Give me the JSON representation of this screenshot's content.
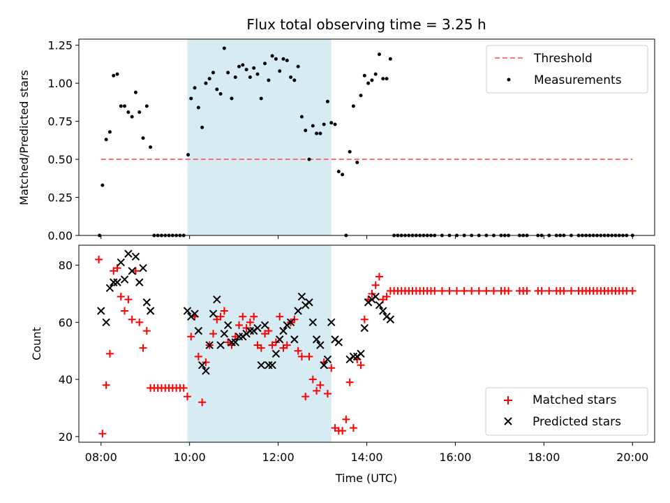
{
  "chart_data": [
    {
      "type": "scatter",
      "title": "Flux total observing time = 3.25 h",
      "xlabel": "",
      "ylabel": "Matched/Predicted stars",
      "xlim": [
        "07:30",
        "20:30"
      ],
      "ylim": [
        0,
        1.29
      ],
      "yticks": [
        "0.00",
        "0.25",
        "0.50",
        "0.75",
        "1.00",
        "1.25"
      ],
      "shaded_region": {
        "x": [
          "09:57",
          "13:12"
        ],
        "color": "#add8e6"
      },
      "legend": {
        "position": "top-right",
        "entries": [
          "Threshold",
          "Measurements"
        ]
      },
      "threshold": {
        "name": "Threshold",
        "x": [
          "08:00",
          "20:00"
        ],
        "y": 0.5,
        "color": "#ff6666",
        "style": "dashed"
      },
      "series": [
        {
          "name": "Measurements",
          "color": "#000000",
          "marker": "dot",
          "x": [
            "07:58",
            "08:02",
            "08:07",
            "08:12",
            "08:17",
            "08:22",
            "08:27",
            "08:32",
            "08:37",
            "08:42",
            "08:47",
            "08:52",
            "08:57",
            "09:02",
            "09:07",
            "09:12",
            "09:17",
            "09:22",
            "09:27",
            "09:32",
            "09:37",
            "09:42",
            "09:47",
            "09:52",
            "09:58",
            "10:02",
            "10:07",
            "10:12",
            "10:17",
            "10:22",
            "10:27",
            "10:32",
            "10:37",
            "10:42",
            "10:47",
            "10:52",
            "10:57",
            "11:02",
            "11:07",
            "11:12",
            "11:17",
            "11:22",
            "11:27",
            "11:32",
            "11:37",
            "11:42",
            "11:47",
            "11:52",
            "11:57",
            "12:02",
            "12:07",
            "12:12",
            "12:17",
            "12:22",
            "12:27",
            "12:32",
            "12:37",
            "12:42",
            "12:47",
            "12:52",
            "12:57",
            "13:02",
            "13:07",
            "13:12",
            "13:17",
            "13:22",
            "13:27",
            "13:32",
            "13:37",
            "13:42",
            "13:47",
            "13:52",
            "13:57",
            "14:02",
            "14:07",
            "14:12",
            "14:17",
            "14:22",
            "14:27",
            "14:32",
            "14:37",
            "14:42",
            "14:47",
            "14:52",
            "14:57",
            "15:02",
            "15:07",
            "15:12",
            "15:17",
            "15:22",
            "15:27",
            "15:32",
            "15:42",
            "15:52",
            "16:02",
            "16:12",
            "16:22",
            "16:32",
            "16:42",
            "16:52",
            "17:02",
            "17:07",
            "17:12",
            "17:27",
            "17:32",
            "17:37",
            "17:52",
            "17:57",
            "18:07",
            "18:17",
            "18:22",
            "18:27",
            "18:37",
            "18:47",
            "18:52",
            "18:57",
            "19:02",
            "19:07",
            "19:12",
            "19:17",
            "19:22",
            "19:27",
            "19:32",
            "19:37",
            "19:42",
            "19:47",
            "19:52",
            "20:00"
          ],
          "y": [
            0.0,
            0.33,
            0.63,
            0.68,
            1.05,
            1.06,
            0.85,
            0.85,
            0.81,
            0.78,
            0.94,
            0.81,
            0.64,
            0.85,
            0.58,
            0.0,
            0.0,
            0.0,
            0.0,
            0.0,
            0.0,
            0.0,
            0.0,
            0.0,
            0.53,
            0.9,
            0.97,
            0.84,
            0.71,
            1.0,
            1.03,
            1.07,
            0.96,
            0.93,
            1.23,
            1.07,
            0.9,
            1.04,
            1.11,
            1.12,
            1.09,
            1.04,
            1.1,
            1.06,
            0.9,
            1.13,
            1.02,
            1.18,
            1.16,
            1.08,
            1.16,
            1.15,
            1.04,
            1.02,
            1.11,
            0.78,
            0.69,
            0.5,
            0.72,
            0.67,
            0.67,
            0.73,
            0.88,
            0.74,
            0.73,
            0.42,
            0.4,
            0.0,
            0.55,
            0.85,
            0.48,
            0.92,
            1.05,
            1.0,
            1.02,
            1.06,
            1.19,
            1.03,
            1.03,
            1.16,
            0.0,
            0.0,
            0.0,
            0.0,
            0.0,
            0.0,
            0.0,
            0.0,
            0.0,
            0.0,
            0.0,
            0.0,
            0.0,
            0.0,
            0.0,
            0.0,
            0.0,
            0.0,
            0.0,
            0.0,
            0.0,
            0.0,
            0.0,
            0.0,
            0.0,
            0.0,
            0.0,
            0.0,
            0.0,
            0.0,
            0.0,
            0.0,
            0.0,
            0.0,
            0.0,
            0.0,
            0.0,
            0.0,
            0.0,
            0.0,
            0.0,
            0.0,
            0.0,
            0.0,
            0.0,
            0.0,
            0.0,
            0.0
          ]
        }
      ]
    },
    {
      "type": "scatter",
      "title": "",
      "xlabel": "Time (UTC)",
      "ylabel": "Count",
      "xlim": [
        "07:30",
        "20:30"
      ],
      "ylim": [
        18,
        87
      ],
      "xticks": [
        "08:00",
        "10:00",
        "12:00",
        "14:00",
        "16:00",
        "18:00",
        "20:00"
      ],
      "yticks": [
        "20",
        "40",
        "60",
        "80"
      ],
      "shaded_region": {
        "x": [
          "09:57",
          "13:12"
        ],
        "color": "#add8e6"
      },
      "legend": {
        "position": "bottom-right",
        "entries": [
          "Matched stars",
          "Predicted stars"
        ]
      },
      "series": [
        {
          "name": "Matched stars",
          "color": "#ff0000",
          "marker": "plus",
          "x": [
            "07:57",
            "08:02",
            "08:07",
            "08:12",
            "08:17",
            "08:22",
            "08:27",
            "08:32",
            "08:37",
            "08:42",
            "08:47",
            "08:52",
            "08:57",
            "09:02",
            "09:07",
            "09:12",
            "09:17",
            "09:22",
            "09:27",
            "09:32",
            "09:37",
            "09:42",
            "09:47",
            "09:52",
            "09:57",
            "10:02",
            "10:07",
            "10:12",
            "10:17",
            "10:22",
            "10:27",
            "10:32",
            "10:37",
            "10:42",
            "10:47",
            "10:52",
            "10:57",
            "11:02",
            "11:07",
            "11:12",
            "11:17",
            "11:22",
            "11:27",
            "11:32",
            "11:37",
            "11:42",
            "11:47",
            "11:52",
            "11:57",
            "12:02",
            "12:07",
            "12:12",
            "12:17",
            "12:22",
            "12:27",
            "12:32",
            "12:37",
            "12:42",
            "12:47",
            "12:52",
            "12:57",
            "13:02",
            "13:07",
            "13:12",
            "13:17",
            "13:22",
            "13:27",
            "13:32",
            "13:37",
            "13:42",
            "13:47",
            "13:52",
            "13:57",
            "14:02",
            "14:07",
            "14:12",
            "14:17",
            "14:22",
            "14:27",
            "14:32",
            "14:37",
            "14:42",
            "14:47",
            "14:52",
            "14:57",
            "15:02",
            "15:07",
            "15:12",
            "15:17",
            "15:22",
            "15:27",
            "15:32",
            "15:42",
            "15:52",
            "16:02",
            "16:12",
            "16:22",
            "16:32",
            "16:42",
            "16:52",
            "17:02",
            "17:07",
            "17:12",
            "17:27",
            "17:32",
            "17:37",
            "17:52",
            "17:57",
            "18:07",
            "18:17",
            "18:22",
            "18:27",
            "18:37",
            "18:47",
            "18:52",
            "18:57",
            "19:02",
            "19:07",
            "19:12",
            "19:17",
            "19:22",
            "19:27",
            "19:32",
            "19:37",
            "19:42",
            "19:47",
            "19:52",
            "20:00"
          ],
          "y": [
            82,
            21,
            38,
            49,
            78,
            79,
            69,
            64,
            68,
            61,
            78,
            60,
            51,
            57,
            37,
            37,
            37,
            37,
            37,
            37,
            37,
            37,
            37,
            37,
            34,
            55,
            62,
            48,
            32,
            46,
            52,
            56,
            61,
            62,
            64,
            53,
            52,
            55,
            59,
            62,
            58,
            60,
            62,
            52,
            51,
            56,
            57,
            52,
            53,
            62,
            51,
            52,
            60,
            61,
            50,
            48,
            34,
            48,
            40,
            36,
            38,
            46,
            35,
            44,
            23,
            22,
            22,
            26,
            39,
            23,
            47,
            45,
            61,
            68,
            70,
            73,
            76,
            68,
            69,
            71,
            71,
            71,
            71,
            71,
            71,
            71,
            71,
            71,
            71,
            71,
            71,
            71,
            71,
            71,
            71,
            71,
            71,
            71,
            71,
            71,
            71,
            71,
            71,
            71,
            71,
            71,
            71,
            71,
            71,
            71,
            71,
            71,
            71,
            71,
            71,
            71,
            71,
            71,
            71,
            71,
            71,
            71,
            71,
            71,
            71,
            71,
            71,
            71
          ]
        },
        {
          "name": "Predicted stars",
          "color": "#000000",
          "marker": "x",
          "x": [
            "08:00",
            "08:07",
            "08:12",
            "08:17",
            "08:22",
            "08:27",
            "08:32",
            "08:37",
            "08:42",
            "08:47",
            "08:52",
            "08:57",
            "09:02",
            "09:07",
            "09:57",
            "10:02",
            "10:07",
            "10:12",
            "10:17",
            "10:22",
            "10:27",
            "10:32",
            "10:37",
            "10:42",
            "10:47",
            "10:52",
            "10:57",
            "11:02",
            "11:07",
            "11:12",
            "11:17",
            "11:22",
            "11:27",
            "11:32",
            "11:37",
            "11:42",
            "11:47",
            "11:52",
            "11:57",
            "12:02",
            "12:07",
            "12:12",
            "12:17",
            "12:22",
            "12:27",
            "12:32",
            "12:37",
            "12:42",
            "12:47",
            "12:52",
            "12:57",
            "13:02",
            "13:07",
            "13:12",
            "13:17",
            "13:22",
            "13:37",
            "13:42",
            "13:47",
            "13:52",
            "13:57",
            "14:02",
            "14:07",
            "14:12",
            "14:17",
            "14:22",
            "14:27",
            "14:32"
          ],
          "y": [
            64,
            60,
            72,
            74,
            74,
            81,
            75,
            84,
            78,
            83,
            74,
            79,
            67,
            64,
            64,
            62,
            63,
            57,
            45,
            43,
            52,
            63,
            68,
            52,
            56,
            59,
            53,
            53,
            55,
            55,
            56,
            57,
            57,
            58,
            45,
            59,
            45,
            45,
            49,
            54,
            57,
            59,
            60,
            54,
            64,
            69,
            66,
            67,
            60,
            54,
            52,
            45,
            47,
            60,
            54,
            53,
            47,
            48,
            48,
            49,
            58,
            67,
            68,
            69,
            66,
            64,
            62,
            61
          ]
        }
      ]
    }
  ]
}
